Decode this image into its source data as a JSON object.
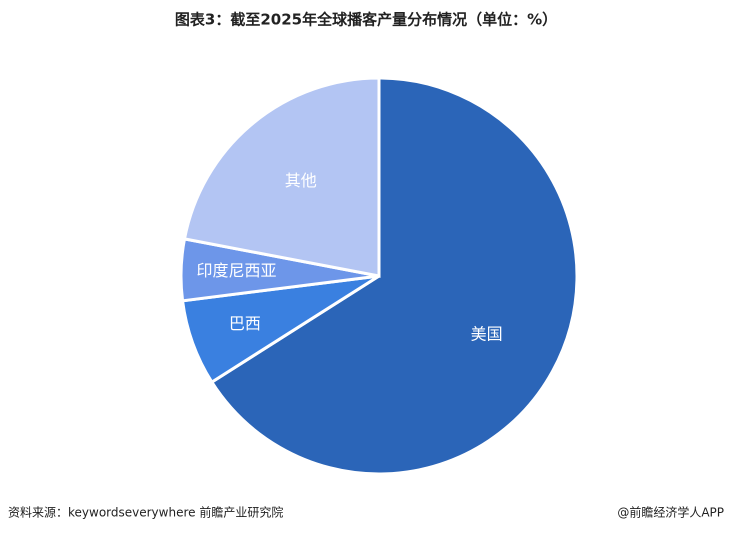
{
  "chart_data": {
    "type": "pie",
    "title": "图表3：截至2025年全球播客产量分布情况（单位：%）",
    "categories": [
      "美国",
      "巴西",
      "印度尼西亚",
      "其他"
    ],
    "values": [
      66,
      7,
      5,
      22
    ],
    "colors": [
      "#2b65b8",
      "#3a80e0",
      "#6d96e9",
      "#b3c5f3"
    ],
    "start_angle": 0,
    "direction": "clockwise"
  },
  "footer": {
    "source": "资料来源：keywordseverywhere  前瞻产业研究院",
    "credit": "@前瞻经济学人APP"
  }
}
